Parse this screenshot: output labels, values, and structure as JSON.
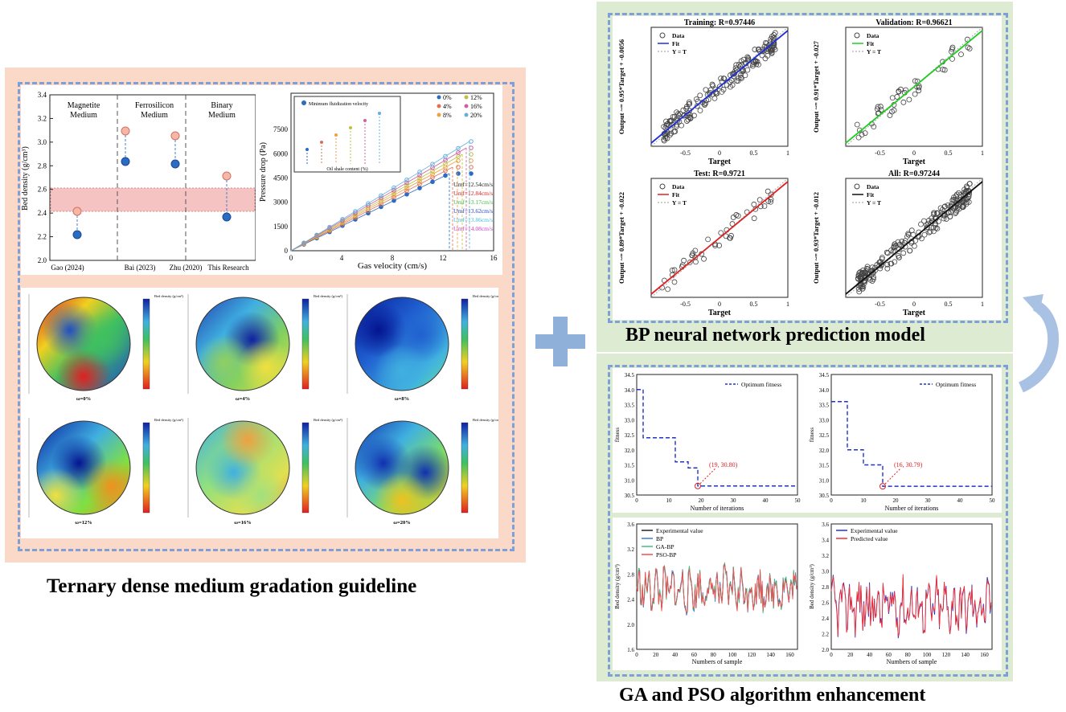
{
  "left_section": {
    "title": "Ternary dense medium gradation guideline",
    "bed_density_chart": {
      "ylabel": "Bed density (g/cm³)",
      "yticks": [
        "2.0",
        "2.2",
        "2.4",
        "2.6",
        "2.8",
        "3.0",
        "3.2",
        "3.4"
      ],
      "categories": [
        "Gao (2024)",
        "Bai (2023)",
        "Zhu (2020)",
        "This Research"
      ],
      "groups": [
        "Magnetite Medium",
        "Ferrosilicon Medium",
        "Binary Medium"
      ]
    },
    "pressure_chart": {
      "xlabel": "Gas velocity (cm/s)",
      "ylabel": "Pressure drop (Pa)",
      "xticks": [
        "0",
        "4",
        "8",
        "12",
        "16"
      ],
      "yticks": [
        "0",
        "1500",
        "3000",
        "4500",
        "6000",
        "7500"
      ],
      "legend": [
        "0%",
        "4%",
        "8%",
        "12%",
        "16%",
        "20%"
      ],
      "umf": [
        "Umf=12.54cm/s",
        "Umf=12.84cm/s",
        "Umf=13.17cm/s",
        "Umf=13.62cm/s",
        "Umf=13.86cm/s",
        "Umf=14.08cm/s"
      ],
      "inset_legend": "Minimum fluidization velocity",
      "inset_xlabel": "Oil shale content (%)"
    },
    "contours": {
      "labels": [
        "ω=0%",
        "ω=4%",
        "ω=8%",
        "ω=12%",
        "ω=16%",
        "ω=20%"
      ],
      "colorbar_title": "Bed density (g/cm³)"
    }
  },
  "right_top": {
    "title": "BP neural network prediction model",
    "xlabel": "Target",
    "legend": [
      "Data",
      "Fit",
      "Y = T"
    ],
    "panels": [
      {
        "title": "Training: R=0.97446",
        "ylabel": "Output ~= 0.95*Target + -0.0056",
        "fit_color": "#1f2fd8"
      },
      {
        "title": "Validation: R=0.96621",
        "ylabel": "Output ~= 0.91*Target + -0.027",
        "fit_color": "#22cc22"
      },
      {
        "title": "Test: R=0.9721",
        "ylabel": "Output ~= 0.89*Target + -0.022",
        "fit_color": "#dd2222"
      },
      {
        "title": "All: R=0.97244",
        "ylabel": "Output ~= 0.93*Target + -0.012",
        "fit_color": "#111111"
      }
    ]
  },
  "right_bottom": {
    "title": "GA and PSO algorithm  enhancement",
    "fitness_charts": [
      {
        "legend": "Optimum fitness",
        "annotation": "(19, 30.80)",
        "xlabel": "Number of iterations",
        "ylabel": "fitness"
      },
      {
        "legend": "Optimum fitness",
        "annotation": "(16, 30.79)",
        "xlabel": "Number of iterations",
        "ylabel": "fitness"
      }
    ],
    "series_charts": [
      {
        "legend": [
          "Experimental value",
          "BP",
          "GA-BP",
          "PSO-BP"
        ],
        "xlabel": "Numbers of sample",
        "ylabel": "Bed density (g/cm³)"
      },
      {
        "legend": [
          "Experimental value",
          "Predicted value"
        ],
        "xlabel": "Numbers of sample",
        "ylabel": "Bed density (g/cm³)"
      }
    ]
  },
  "colors": {
    "left_bg": "#fbd9c9",
    "right_bg": "#dcebd2",
    "dash": "#7fa0d6",
    "plus": "#8fb0d9"
  }
}
